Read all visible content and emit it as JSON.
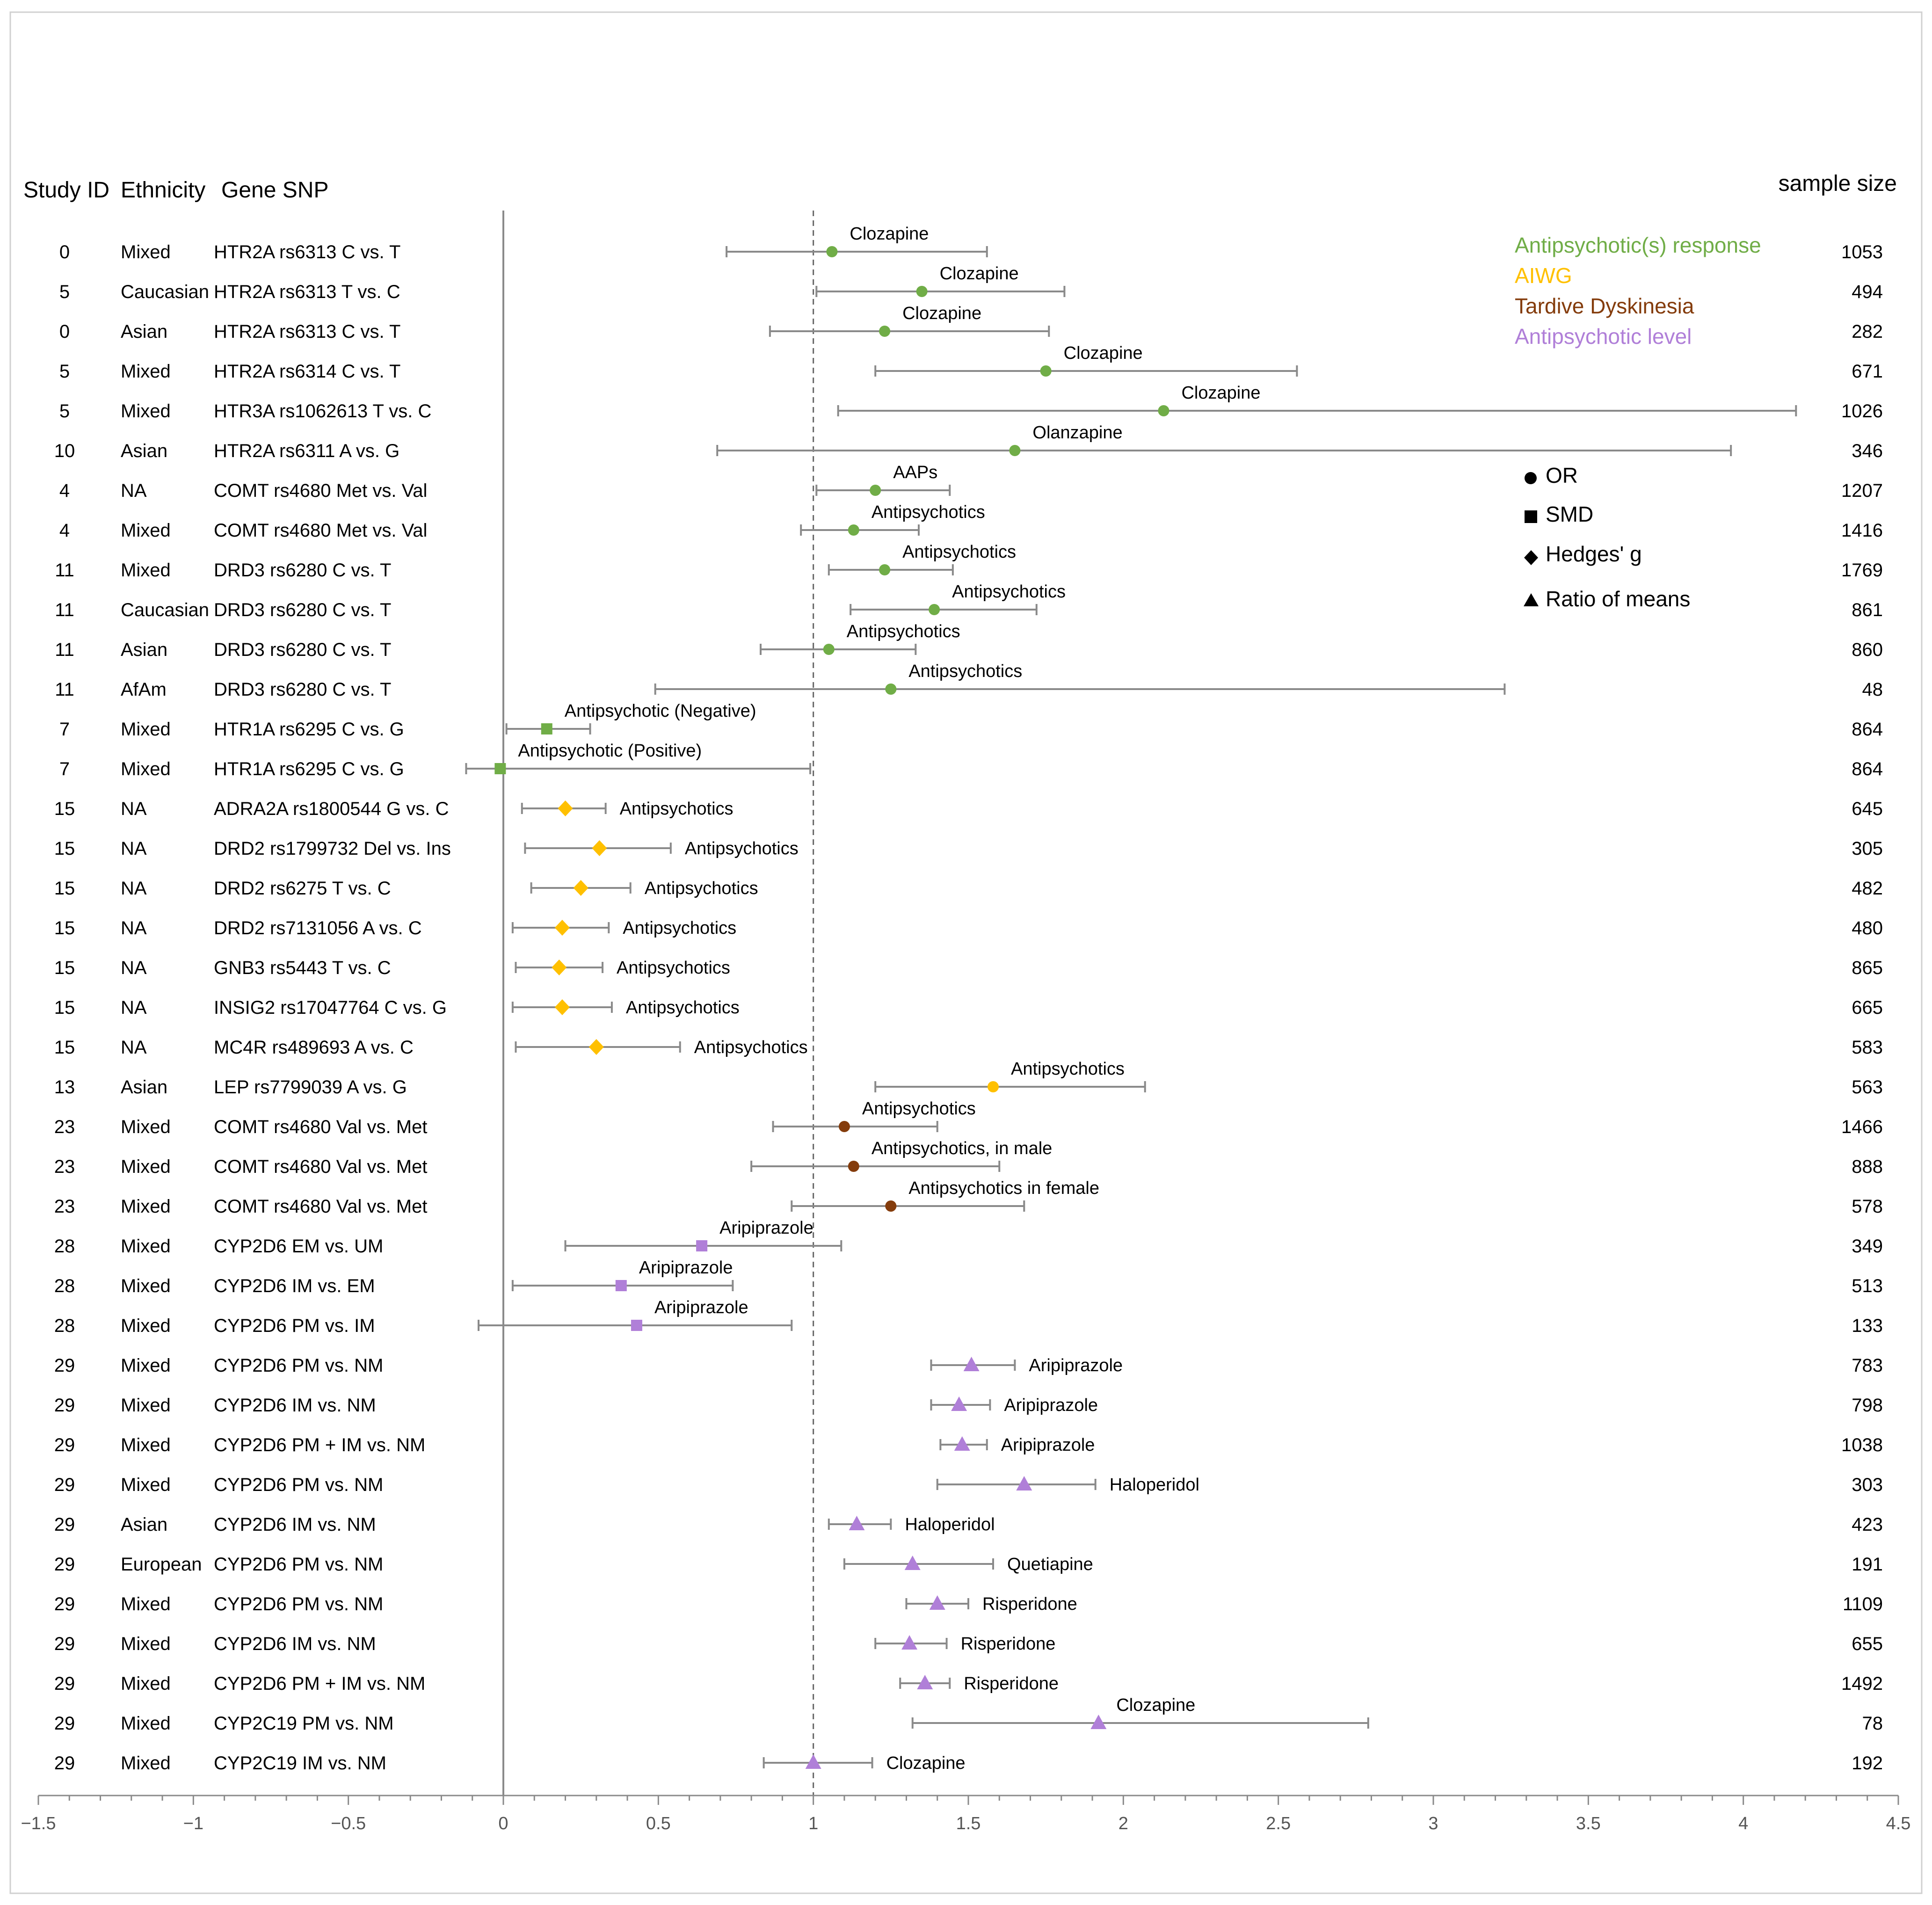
{
  "headers": {
    "study_id": "Study ID",
    "ethnicity": "Ethnicity",
    "gene_snp": "Gene SNP",
    "sample_size": "sample size"
  },
  "legend": {
    "categories": [
      {
        "label": "Antipsychotic(s) response",
        "color": "#70AD47"
      },
      {
        "label": "AIWG",
        "color": "#FFC000"
      },
      {
        "label": "Tardive Dyskinesia",
        "color": "#843C0C"
      },
      {
        "label": "Antipsychotic level",
        "color": "#B07FD8"
      }
    ],
    "shapes": [
      {
        "label": "OR",
        "shape": "circle"
      },
      {
        "label": "SMD",
        "shape": "square"
      },
      {
        "label": "Hedges' g",
        "shape": "diamond"
      },
      {
        "label": "Ratio of means",
        "shape": "triangle"
      }
    ]
  },
  "chart_data": {
    "type": "forest",
    "xlim": [
      -1.5,
      4.5
    ],
    "xticks": [
      "−1.5",
      "−1",
      "−0.5",
      "0",
      "0.5",
      "1",
      "1.5",
      "2",
      "2.5",
      "3",
      "3.5",
      "4",
      "4.5"
    ],
    "xtick_values": [
      -1.5,
      -1,
      -0.5,
      0,
      0.5,
      1,
      1.5,
      2,
      2.5,
      3,
      3.5,
      4,
      4.5
    ],
    "reference_lines": {
      "solid": 0,
      "dashed": 1
    },
    "rows": [
      {
        "study": "0",
        "ethnicity": "Mixed",
        "gene": "HTR2A  rs6313 C vs. T",
        "drug": "Clozapine",
        "est": 1.06,
        "lo": 0.72,
        "hi": 1.56,
        "n": "1053",
        "cat": 0,
        "shape": "circle",
        "lbl": "above"
      },
      {
        "study": "5",
        "ethnicity": "Caucasian",
        "gene": "HTR2A  rs6313 T vs. C",
        "drug": "Clozapine",
        "est": 1.35,
        "lo": 1.01,
        "hi": 1.81,
        "n": "494",
        "cat": 0,
        "shape": "circle",
        "lbl": "above"
      },
      {
        "study": "0",
        "ethnicity": "Asian",
        "gene": "HTR2A  rs6313 C vs. T",
        "drug": "Clozapine",
        "est": 1.23,
        "lo": 0.86,
        "hi": 1.76,
        "n": "282",
        "cat": 0,
        "shape": "circle",
        "lbl": "above"
      },
      {
        "study": "5",
        "ethnicity": "Mixed",
        "gene": "HTR2A  rs6314 C vs. T",
        "drug": "Clozapine",
        "est": 1.75,
        "lo": 1.2,
        "hi": 2.56,
        "n": "671",
        "cat": 0,
        "shape": "circle",
        "lbl": "above"
      },
      {
        "study": "5",
        "ethnicity": "Mixed",
        "gene": "HTR3A  rs1062613 T vs. C",
        "drug": "Clozapine",
        "est": 2.13,
        "lo": 1.08,
        "hi": 4.17,
        "n": "1026",
        "cat": 0,
        "shape": "circle",
        "lbl": "above"
      },
      {
        "study": "10",
        "ethnicity": "Asian",
        "gene": "HTR2A  rs6311 A vs. G",
        "drug": "Olanzapine",
        "est": 1.65,
        "lo": 0.69,
        "hi": 3.96,
        "n": "346",
        "cat": 0,
        "shape": "circle",
        "lbl": "above"
      },
      {
        "study": "4",
        "ethnicity": "NA",
        "gene": "COMT  rs4680 Met vs. Val",
        "drug": "AAPs",
        "est": 1.2,
        "lo": 1.01,
        "hi": 1.44,
        "n": "1207",
        "cat": 0,
        "shape": "circle",
        "lbl": "above"
      },
      {
        "study": "4",
        "ethnicity": "Mixed",
        "gene": "COMT  rs4680 Met vs. Val",
        "drug": "Antipsychotics",
        "est": 1.13,
        "lo": 0.96,
        "hi": 1.34,
        "n": "1416",
        "cat": 0,
        "shape": "circle",
        "lbl": "above"
      },
      {
        "study": "11",
        "ethnicity": "Mixed",
        "gene": "DRD3  rs6280 C vs. T",
        "drug": "Antipsychotics",
        "est": 1.23,
        "lo": 1.05,
        "hi": 1.45,
        "n": "1769",
        "cat": 0,
        "shape": "circle",
        "lbl": "above"
      },
      {
        "study": "11",
        "ethnicity": "Caucasian",
        "gene": "DRD3  rs6280 C vs. T",
        "drug": "Antipsychotics",
        "est": 1.39,
        "lo": 1.12,
        "hi": 1.72,
        "n": "861",
        "cat": 0,
        "shape": "circle",
        "lbl": "above"
      },
      {
        "study": "11",
        "ethnicity": "Asian",
        "gene": "DRD3  rs6280 C vs. T",
        "drug": "Antipsychotics",
        "est": 1.05,
        "lo": 0.83,
        "hi": 1.33,
        "n": "860",
        "cat": 0,
        "shape": "circle",
        "lbl": "above"
      },
      {
        "study": "11",
        "ethnicity": "AfAm",
        "gene": "DRD3  rs6280 C vs. T",
        "drug": "Antipsychotics",
        "est": 1.25,
        "lo": 0.49,
        "hi": 3.23,
        "n": "48",
        "cat": 0,
        "shape": "circle",
        "lbl": "above"
      },
      {
        "study": "7",
        "ethnicity": "Mixed",
        "gene": "HTR1A  rs6295 C  vs. G",
        "drug": "Antipsychotic (Negative)",
        "est": 0.14,
        "lo": 0.01,
        "hi": 0.28,
        "n": "864",
        "cat": 0,
        "shape": "square",
        "lbl": "above"
      },
      {
        "study": "7",
        "ethnicity": "Mixed",
        "gene": "HTR1A  rs6295 C  vs. G",
        "drug": "Antipsychotic (Positive)",
        "est": -0.01,
        "lo": -0.12,
        "hi": 0.99,
        "n": "864",
        "cat": 0,
        "shape": "square",
        "lbl": "above"
      },
      {
        "study": "15",
        "ethnicity": "NA",
        "gene": "ADRA2A  rs1800544 G vs. C",
        "drug": "Antipsychotics",
        "est": 0.2,
        "lo": 0.06,
        "hi": 0.33,
        "n": "645",
        "cat": 1,
        "shape": "diamond",
        "lbl": "right"
      },
      {
        "study": "15",
        "ethnicity": "NA",
        "gene": "DRD2  rs1799732 Del vs. Ins",
        "drug": "Antipsychotics",
        "est": 0.31,
        "lo": 0.07,
        "hi": 0.54,
        "n": "305",
        "cat": 1,
        "shape": "diamond",
        "lbl": "right"
      },
      {
        "study": "15",
        "ethnicity": "NA",
        "gene": "DRD2  rs6275 T vs. C",
        "drug": "Antipsychotics",
        "est": 0.25,
        "lo": 0.09,
        "hi": 0.41,
        "n": "482",
        "cat": 1,
        "shape": "diamond",
        "lbl": "right"
      },
      {
        "study": "15",
        "ethnicity": "NA",
        "gene": "DRD2  rs7131056 A vs. C",
        "drug": "Antipsychotics",
        "est": 0.19,
        "lo": 0.03,
        "hi": 0.34,
        "n": "480",
        "cat": 1,
        "shape": "diamond",
        "lbl": "right"
      },
      {
        "study": "15",
        "ethnicity": "NA",
        "gene": "GNB3  rs5443 T vs. C",
        "drug": "Antipsychotics",
        "est": 0.18,
        "lo": 0.04,
        "hi": 0.32,
        "n": "865",
        "cat": 1,
        "shape": "diamond",
        "lbl": "right"
      },
      {
        "study": "15",
        "ethnicity": "NA",
        "gene": "INSIG2  rs17047764 C  vs. G",
        "drug": "Antipsychotics",
        "est": 0.19,
        "lo": 0.03,
        "hi": 0.35,
        "n": "665",
        "cat": 1,
        "shape": "diamond",
        "lbl": "right"
      },
      {
        "study": "15",
        "ethnicity": "NA",
        "gene": "MC4R  rs489693 A vs. C",
        "drug": "Antipsychotics",
        "est": 0.3,
        "lo": 0.04,
        "hi": 0.57,
        "n": "583",
        "cat": 1,
        "shape": "diamond",
        "lbl": "right"
      },
      {
        "study": "13",
        "ethnicity": "Asian",
        "gene": "LEP  rs7799039 A vs. G",
        "drug": "Antipsychotics",
        "est": 1.58,
        "lo": 1.2,
        "hi": 2.07,
        "n": "563",
        "cat": 1,
        "shape": "circle",
        "lbl": "above"
      },
      {
        "study": "23",
        "ethnicity": "Mixed",
        "gene": "COMT  rs4680 Val vs. Met",
        "drug": "Antipsychotics",
        "est": 1.1,
        "lo": 0.87,
        "hi": 1.4,
        "n": "1466",
        "cat": 2,
        "shape": "circle",
        "lbl": "above"
      },
      {
        "study": "23",
        "ethnicity": "Mixed",
        "gene": "COMT  rs4680 Val vs. Met",
        "drug": "Antipsychotics, in male",
        "est": 1.13,
        "lo": 0.8,
        "hi": 1.6,
        "n": "888",
        "cat": 2,
        "shape": "circle",
        "lbl": "above"
      },
      {
        "study": "23",
        "ethnicity": "Mixed",
        "gene": "COMT  rs4680 Val vs. Met",
        "drug": "Antipsychotics in female",
        "est": 1.25,
        "lo": 0.93,
        "hi": 1.68,
        "n": "578",
        "cat": 2,
        "shape": "circle",
        "lbl": "above"
      },
      {
        "study": "28",
        "ethnicity": "Mixed",
        "gene": "CYP2D6  EM vs. UM",
        "drug": "Aripiprazole",
        "est": 0.64,
        "lo": 0.2,
        "hi": 1.09,
        "n": "349",
        "cat": 3,
        "shape": "square",
        "lbl": "above"
      },
      {
        "study": "28",
        "ethnicity": "Mixed",
        "gene": "CYP2D6   IM vs. EM",
        "drug": "Aripiprazole",
        "est": 0.38,
        "lo": 0.03,
        "hi": 0.74,
        "n": "513",
        "cat": 3,
        "shape": "square",
        "lbl": "above"
      },
      {
        "study": "28",
        "ethnicity": "Mixed",
        "gene": "CYP2D6   PM vs. IM",
        "drug": "Aripiprazole",
        "est": 0.43,
        "lo": -0.08,
        "hi": 0.93,
        "n": "133",
        "cat": 3,
        "shape": "square",
        "lbl": "above"
      },
      {
        "study": "29",
        "ethnicity": "Mixed",
        "gene": "CYP2D6   PM vs. NM",
        "drug": "Aripiprazole",
        "est": 1.51,
        "lo": 1.38,
        "hi": 1.65,
        "n": "783",
        "cat": 3,
        "shape": "triangle",
        "lbl": "right"
      },
      {
        "study": "29",
        "ethnicity": "Mixed",
        "gene": "CYP2D6   IM vs. NM",
        "drug": "Aripiprazole",
        "est": 1.47,
        "lo": 1.38,
        "hi": 1.57,
        "n": "798",
        "cat": 3,
        "shape": "triangle",
        "lbl": "right"
      },
      {
        "study": "29",
        "ethnicity": "Mixed",
        "gene": "CYP2D6   PM + IM vs. NM",
        "drug": "Aripiprazole",
        "est": 1.48,
        "lo": 1.41,
        "hi": 1.56,
        "n": "1038",
        "cat": 3,
        "shape": "triangle",
        "lbl": "right"
      },
      {
        "study": "29",
        "ethnicity": "Mixed",
        "gene": "CYP2D6   PM vs. NM",
        "drug": "Haloperidol",
        "est": 1.68,
        "lo": 1.4,
        "hi": 1.91,
        "n": "303",
        "cat": 3,
        "shape": "triangle",
        "lbl": "right"
      },
      {
        "study": "29",
        "ethnicity": "Asian",
        "gene": "CYP2D6   IM vs. NM",
        "drug": "Haloperidol",
        "est": 1.14,
        "lo": 1.05,
        "hi": 1.25,
        "n": "423",
        "cat": 3,
        "shape": "triangle",
        "lbl": "right"
      },
      {
        "study": "29",
        "ethnicity": "European",
        "gene": "CYP2D6   PM vs. NM",
        "drug": "Quetiapine",
        "est": 1.32,
        "lo": 1.1,
        "hi": 1.58,
        "n": "191",
        "cat": 3,
        "shape": "triangle",
        "lbl": "right"
      },
      {
        "study": "29",
        "ethnicity": "Mixed",
        "gene": "CYP2D6   PM vs. NM",
        "drug": "Risperidone",
        "est": 1.4,
        "lo": 1.3,
        "hi": 1.5,
        "n": "1109",
        "cat": 3,
        "shape": "triangle",
        "lbl": "right"
      },
      {
        "study": "29",
        "ethnicity": "Mixed",
        "gene": "CYP2D6   IM vs. NM",
        "drug": "Risperidone",
        "est": 1.31,
        "lo": 1.2,
        "hi": 1.43,
        "n": "655",
        "cat": 3,
        "shape": "triangle",
        "lbl": "right"
      },
      {
        "study": "29",
        "ethnicity": "Mixed",
        "gene": "CYP2D6   PM + IM vs. NM",
        "drug": "Risperidone",
        "est": 1.36,
        "lo": 1.28,
        "hi": 1.44,
        "n": "1492",
        "cat": 3,
        "shape": "triangle",
        "lbl": "right"
      },
      {
        "study": "29",
        "ethnicity": "Mixed",
        "gene": "CYP2C19   PM vs. NM",
        "drug": "Clozapine",
        "est": 1.92,
        "lo": 1.32,
        "hi": 2.79,
        "n": "78",
        "cat": 3,
        "shape": "triangle",
        "lbl": "above"
      },
      {
        "study": "29",
        "ethnicity": "Mixed",
        "gene": "CYP2C19   IM vs. NM",
        "drug": "Clozapine",
        "est": 1.0,
        "lo": 0.84,
        "hi": 1.19,
        "n": "192",
        "cat": 3,
        "shape": "triangle",
        "lbl": "right"
      }
    ]
  }
}
